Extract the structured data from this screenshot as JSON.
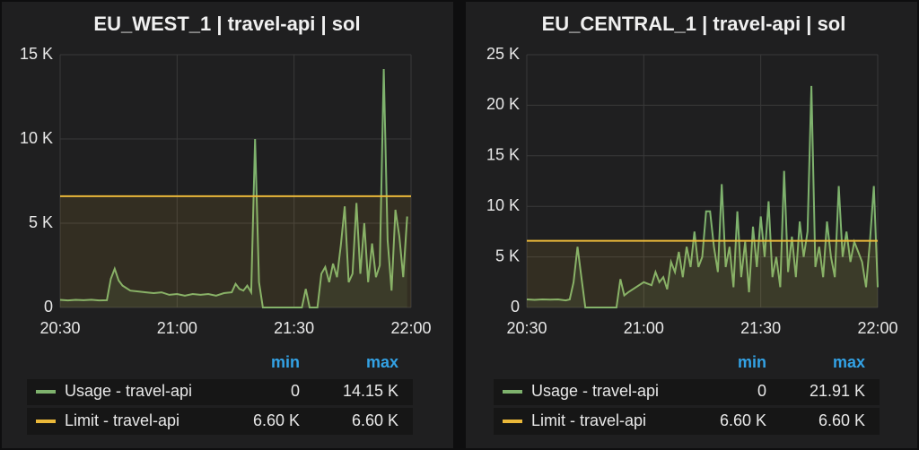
{
  "chart_data": [
    {
      "type": "line",
      "title": "EU_WEST_1 | travel-api | sol",
      "x": [
        "20:30",
        "20:32",
        "20:34",
        "20:36",
        "20:38",
        "20:40",
        "20:42",
        "20:43",
        "20:44",
        "20:45",
        "20:46",
        "20:48",
        "20:50",
        "20:52",
        "20:54",
        "20:56",
        "20:58",
        "21:00",
        "21:02",
        "21:04",
        "21:06",
        "21:08",
        "21:10",
        "21:12",
        "21:14",
        "21:15",
        "21:16",
        "21:17",
        "21:18",
        "21:19",
        "21:20",
        "21:21",
        "21:22",
        "21:24",
        "21:28",
        "21:32",
        "21:33",
        "21:34",
        "21:36",
        "21:37",
        "21:38",
        "21:39",
        "21:40",
        "21:41",
        "21:42",
        "21:43",
        "21:44",
        "21:45",
        "21:46",
        "21:47",
        "21:48",
        "21:49",
        "21:50",
        "21:51",
        "21:52",
        "21:53",
        "21:54",
        "21:55",
        "21:56",
        "21:57",
        "21:58",
        "21:59"
      ],
      "series": [
        {
          "name": "Usage - travel-api",
          "color": "#7eb26d",
          "fill": true,
          "values": [
            450,
            420,
            450,
            430,
            460,
            420,
            430,
            1700,
            2300,
            1600,
            1300,
            1000,
            950,
            900,
            850,
            900,
            750,
            800,
            700,
            800,
            750,
            800,
            700,
            850,
            900,
            1400,
            1100,
            1000,
            1300,
            900,
            10000,
            1500,
            0,
            0,
            0,
            0,
            1100,
            0,
            0,
            2000,
            2400,
            1500,
            2600,
            1800,
            3700,
            6000,
            1500,
            2000,
            6200,
            2000,
            5000,
            1500,
            3800,
            1800,
            2500,
            14150,
            4000,
            1000,
            5800,
            4200,
            1800,
            5400
          ],
          "stats": [
            0,
            {
              "value": 14150,
              "label": "14.15 K"
            }
          ]
        },
        {
          "name": "Limit - travel-api",
          "color": "#eab839",
          "fill": true,
          "x": [
            "20:30",
            "22:00"
          ],
          "values": [
            6600,
            6600
          ],
          "stats": [
            {
              "value": 6600,
              "label": "6.60 K"
            },
            {
              "value": 6600,
              "label": "6.60 K"
            }
          ]
        }
      ],
      "xlim": [
        "20:30",
        "22:00"
      ],
      "xticks": [
        "20:30",
        "21:00",
        "21:30",
        "22:00"
      ],
      "ylim": [
        0,
        15000
      ],
      "yticks": [
        0,
        {
          "value": 5000,
          "label": "5 K"
        },
        {
          "value": 10000,
          "label": "10 K"
        },
        {
          "value": 15000,
          "label": "15 K"
        }
      ],
      "grid": true,
      "legend_columns": [
        "min",
        "max"
      ]
    },
    {
      "type": "line",
      "title": "EU_CENTRAL_1 | travel-api | sol",
      "x": [
        "20:30",
        "20:32",
        "20:34",
        "20:36",
        "20:38",
        "20:40",
        "20:41",
        "20:42",
        "20:43",
        "20:44",
        "20:45",
        "20:48",
        "20:52",
        "20:53",
        "20:54",
        "20:55",
        "20:56",
        "20:58",
        "21:00",
        "21:02",
        "21:03",
        "21:04",
        "21:05",
        "21:06",
        "21:07",
        "21:08",
        "21:09",
        "21:10",
        "21:11",
        "21:12",
        "21:13",
        "21:14",
        "21:15",
        "21:16",
        "21:17",
        "21:18",
        "21:19",
        "21:20",
        "21:21",
        "21:22",
        "21:23",
        "21:24",
        "21:25",
        "21:26",
        "21:27",
        "21:28",
        "21:29",
        "21:30",
        "21:31",
        "21:32",
        "21:33",
        "21:34",
        "21:35",
        "21:36",
        "21:37",
        "21:38",
        "21:39",
        "21:40",
        "21:41",
        "21:42",
        "21:43",
        "21:44",
        "21:45",
        "21:46",
        "21:47",
        "21:48",
        "21:49",
        "21:50",
        "21:51",
        "21:52",
        "21:53",
        "21:54",
        "21:55",
        "21:56",
        "21:57",
        "21:58",
        "21:59",
        "22:00"
      ],
      "series": [
        {
          "name": "Usage - travel-api",
          "color": "#7eb26d",
          "fill": true,
          "values": [
            800,
            750,
            800,
            780,
            800,
            700,
            800,
            2500,
            6000,
            3000,
            0,
            0,
            0,
            0,
            2800,
            1200,
            1500,
            2000,
            2500,
            2200,
            3500,
            2500,
            3000,
            1800,
            4500,
            3500,
            5500,
            3000,
            6000,
            4000,
            7500,
            4000,
            5000,
            9500,
            9500,
            6000,
            3500,
            12200,
            4000,
            6000,
            2000,
            9500,
            3000,
            6500,
            1500,
            8000,
            4000,
            9000,
            5000,
            10500,
            3000,
            5000,
            2000,
            13500,
            3500,
            7000,
            3000,
            8500,
            5000,
            7500,
            21910,
            4000,
            6000,
            3000,
            8500,
            5000,
            3000,
            12000,
            5000,
            7500,
            4500,
            6500,
            5500,
            4500,
            2000,
            6500,
            12000,
            2000
          ],
          "stats": [
            0,
            {
              "value": 21910,
              "label": "21.91 K"
            }
          ]
        },
        {
          "name": "Limit - travel-api",
          "color": "#eab839",
          "fill": true,
          "x": [
            "20:30",
            "22:00"
          ],
          "values": [
            6600,
            6600
          ],
          "stats": [
            {
              "value": 6600,
              "label": "6.60 K"
            },
            {
              "value": 6600,
              "label": "6.60 K"
            }
          ]
        }
      ],
      "xlim": [
        "20:30",
        "22:00"
      ],
      "xticks": [
        "20:30",
        "21:00",
        "21:30",
        "22:00"
      ],
      "ylim": [
        0,
        25000
      ],
      "yticks": [
        0,
        {
          "value": 5000,
          "label": "5 K"
        },
        {
          "value": 10000,
          "label": "10 K"
        },
        {
          "value": 15000,
          "label": "15 K"
        },
        {
          "value": 20000,
          "label": "20 K"
        },
        {
          "value": 25000,
          "label": "25 K"
        }
      ],
      "grid": true,
      "legend_columns": [
        "min",
        "max"
      ]
    }
  ]
}
